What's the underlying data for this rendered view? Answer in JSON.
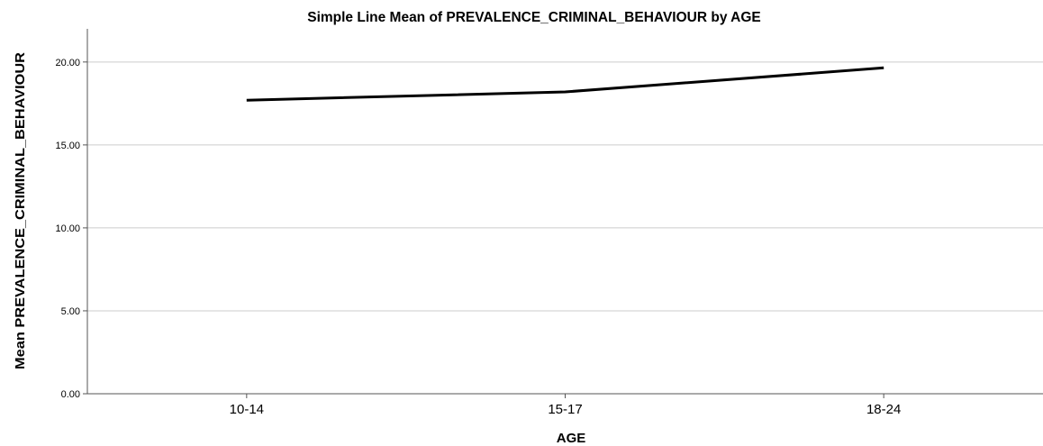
{
  "chart_data": {
    "type": "line",
    "title": "Simple Line Mean of PREVALENCE_CRIMINAL_BEHAVIOUR by AGE",
    "xlabel": "AGE",
    "ylabel": "Mean PREVALENCE_CRIMINAL_BEHAVIOUR",
    "categories": [
      "10-14",
      "15-17",
      "18-24"
    ],
    "values": [
      17.7,
      18.2,
      19.65
    ],
    "ylim": [
      0,
      22
    ],
    "yticks": [
      0,
      5,
      10,
      15,
      20
    ],
    "ytick_labels": [
      "0.00",
      "5.00",
      "10.00",
      "15.00",
      "20.00"
    ],
    "grid": "horizontal",
    "legend": "none",
    "line_color": "#000000",
    "grid_color": "#cccccc",
    "axis_color": "#555555"
  }
}
